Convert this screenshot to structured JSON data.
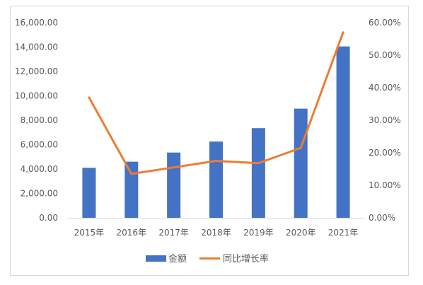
{
  "chart_data": {
    "type": "bar",
    "categories": [
      "2015年",
      "2016年",
      "2017年",
      "2018年",
      "2019年",
      "2020年",
      "2021年"
    ],
    "series": [
      {
        "name": "金额",
        "type": "bar",
        "axis": "left",
        "color": "#4472C4",
        "values": [
          4100,
          4600,
          5350,
          6250,
          7350,
          8950,
          14050
        ]
      },
      {
        "name": "同比增长率",
        "type": "line",
        "axis": "right",
        "color": "#ED7D31",
        "values": [
          0.37,
          0.135,
          0.155,
          0.175,
          0.168,
          0.215,
          0.57
        ]
      }
    ],
    "y_left": {
      "min": 0,
      "max": 16000,
      "ticks": [
        "0.00",
        "2,000.00",
        "4,000.00",
        "6,000.00",
        "8,000.00",
        "10,000.00",
        "12,000.00",
        "14,000.00",
        "16,000.00"
      ]
    },
    "y_right": {
      "min": 0,
      "max": 0.6,
      "ticks": [
        "0.00%",
        "10.00%",
        "20.00%",
        "30.00%",
        "40.00%",
        "50.00%",
        "60.00%"
      ]
    },
    "legend_position": "bottom",
    "grid": false
  }
}
